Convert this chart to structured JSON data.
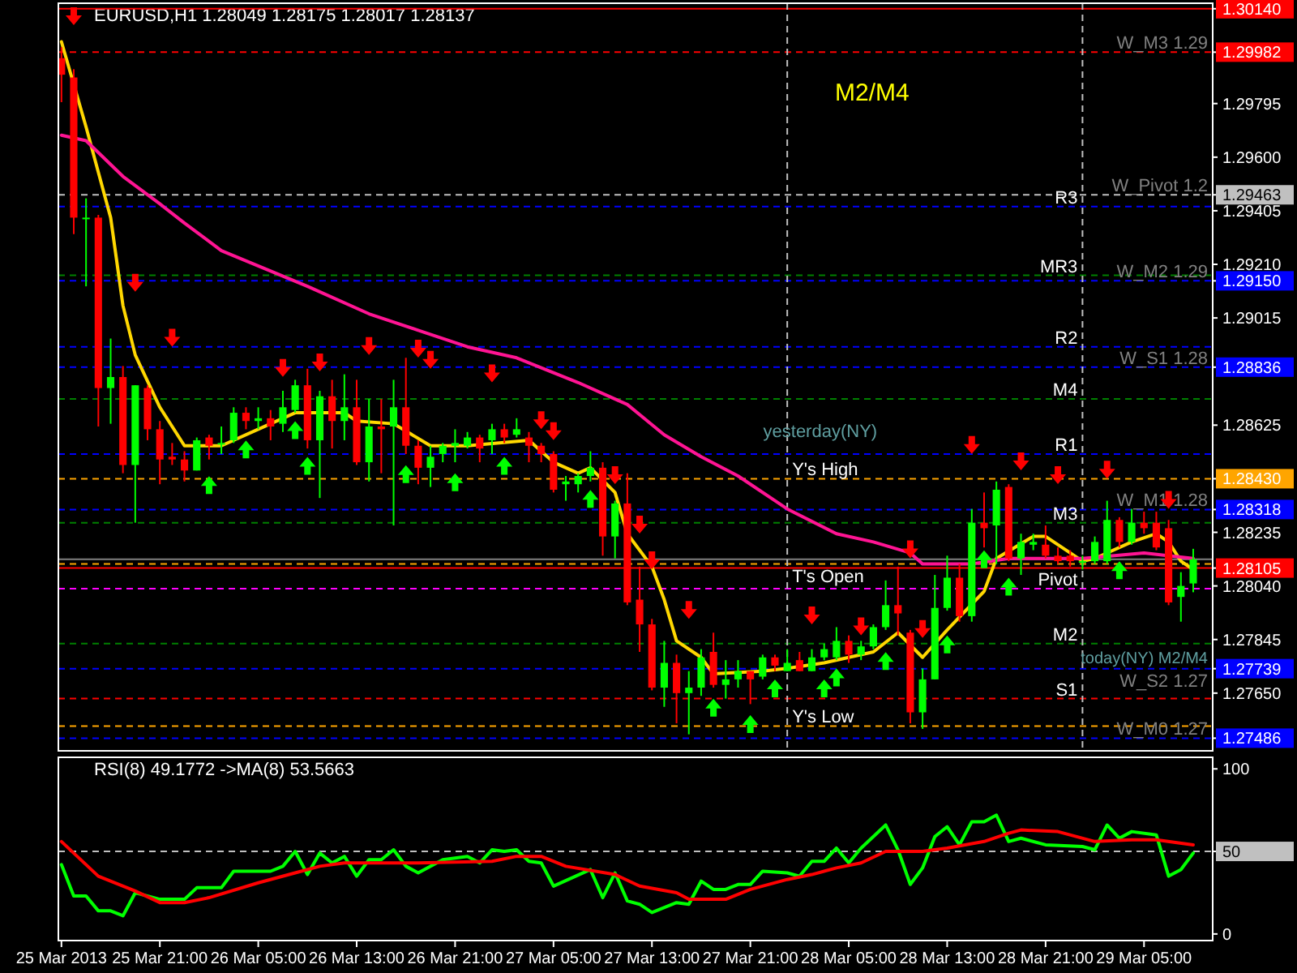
{
  "chart_data": [
    {
      "type": "candlestick",
      "title": "EURUSD,H1 1.28049 1.28175 1.28017 1.28137",
      "x": [
        "2013-03-25T13:00",
        "2013-03-25T14:00",
        "2013-03-25T15:00",
        "2013-03-25T16:00",
        "2013-03-25T17:00",
        "2013-03-25T18:00",
        "2013-03-25T19:00",
        "2013-03-25T20:00",
        "2013-03-25T21:00",
        "2013-03-25T22:00",
        "2013-03-25T23:00",
        "2013-03-26T00:00",
        "2013-03-26T01:00",
        "2013-03-26T02:00",
        "2013-03-26T03:00",
        "2013-03-26T04:00",
        "2013-03-26T05:00",
        "2013-03-26T06:00",
        "2013-03-26T07:00",
        "2013-03-26T08:00",
        "2013-03-26T09:00",
        "2013-03-26T10:00",
        "2013-03-26T11:00",
        "2013-03-26T12:00",
        "2013-03-26T13:00",
        "2013-03-26T14:00",
        "2013-03-26T15:00",
        "2013-03-26T16:00",
        "2013-03-26T17:00",
        "2013-03-26T18:00",
        "2013-03-26T19:00",
        "2013-03-26T20:00",
        "2013-03-26T21:00",
        "2013-03-26T22:00",
        "2013-03-26T23:00",
        "2013-03-27T00:00",
        "2013-03-27T01:00",
        "2013-03-27T02:00",
        "2013-03-27T03:00",
        "2013-03-27T04:00",
        "2013-03-27T05:00",
        "2013-03-27T06:00",
        "2013-03-27T07:00",
        "2013-03-27T08:00",
        "2013-03-27T09:00",
        "2013-03-27T10:00",
        "2013-03-27T11:00",
        "2013-03-27T12:00",
        "2013-03-27T13:00",
        "2013-03-27T14:00",
        "2013-03-27T15:00",
        "2013-03-27T16:00",
        "2013-03-27T17:00",
        "2013-03-27T18:00",
        "2013-03-27T19:00",
        "2013-03-27T20:00",
        "2013-03-27T21:00",
        "2013-03-27T22:00",
        "2013-03-27T23:00",
        "2013-03-28T00:00",
        "2013-03-28T01:00",
        "2013-03-28T02:00",
        "2013-03-28T03:00",
        "2013-03-28T04:00",
        "2013-03-28T05:00",
        "2013-03-28T06:00",
        "2013-03-28T07:00",
        "2013-03-28T08:00",
        "2013-03-28T09:00",
        "2013-03-28T10:00",
        "2013-03-28T11:00",
        "2013-03-28T12:00",
        "2013-03-28T13:00",
        "2013-03-28T14:00",
        "2013-03-28T15:00",
        "2013-03-28T16:00",
        "2013-03-28T17:00",
        "2013-03-28T18:00",
        "2013-03-28T19:00",
        "2013-03-28T20:00",
        "2013-03-28T21:00",
        "2013-03-28T22:00",
        "2013-03-28T23:00",
        "2013-03-29T00:00",
        "2013-03-29T01:00",
        "2013-03-29T02:00",
        "2013-03-29T03:00",
        "2013-03-29T04:00",
        "2013-03-29T05:00",
        "2013-03-29T06:00",
        "2013-03-29T07:00",
        "2013-03-29T08:00",
        "2013-03-29T09:00"
      ],
      "ohlc": [
        [
          1.2996,
          1.3,
          1.298,
          1.299
        ],
        [
          1.2989,
          1.2992,
          1.2932,
          1.2938
        ],
        [
          1.2938,
          1.2945,
          1.2913,
          1.2938
        ],
        [
          1.2938,
          1.2939,
          1.2862,
          1.2876
        ],
        [
          1.2876,
          1.2894,
          1.2863,
          1.288
        ],
        [
          1.288,
          1.2884,
          1.2845,
          1.2848
        ],
        [
          1.2848,
          1.2877,
          1.2827,
          1.2877
        ],
        [
          1.2876,
          1.2877,
          1.2857,
          1.2861
        ],
        [
          1.2861,
          1.2864,
          1.2841,
          1.285
        ],
        [
          1.2851,
          1.2856,
          1.2848,
          1.285
        ],
        [
          1.285,
          1.2853,
          1.2842,
          1.2846
        ],
        [
          1.2846,
          1.2858,
          1.2846,
          1.2857
        ],
        [
          1.2858,
          1.2859,
          1.285,
          1.2855
        ],
        [
          1.2856,
          1.2862,
          1.2852,
          1.2856
        ],
        [
          1.2857,
          1.2869,
          1.2856,
          1.2867
        ],
        [
          1.2867,
          1.2869,
          1.2861,
          1.2864
        ],
        [
          1.2864,
          1.2869,
          1.2861,
          1.2865
        ],
        [
          1.2865,
          1.2868,
          1.2857,
          1.2862
        ],
        [
          1.2863,
          1.2875,
          1.286,
          1.2869
        ],
        [
          1.2868,
          1.2879,
          1.2867,
          1.2877
        ],
        [
          1.2877,
          1.2883,
          1.2854,
          1.2857
        ],
        [
          1.2857,
          1.2875,
          1.2836,
          1.2873
        ],
        [
          1.2873,
          1.2879,
          1.2854,
          1.2864
        ],
        [
          1.2864,
          1.2881,
          1.2857,
          1.2869
        ],
        [
          1.2869,
          1.2879,
          1.2848,
          1.2849
        ],
        [
          1.2849,
          1.2872,
          1.2842,
          1.2862
        ],
        [
          1.2862,
          1.2872,
          1.2845,
          1.2861
        ],
        [
          1.2862,
          1.2879,
          1.2826,
          1.2869
        ],
        [
          1.2869,
          1.2887,
          1.2852,
          1.2855
        ],
        [
          1.2855,
          1.2857,
          1.2841,
          1.2847
        ],
        [
          1.2847,
          1.2855,
          1.284,
          1.2851
        ],
        [
          1.2852,
          1.2856,
          1.2849,
          1.2855
        ],
        [
          1.2855,
          1.2861,
          1.2849,
          1.2856
        ],
        [
          1.2855,
          1.286,
          1.2854,
          1.2858
        ],
        [
          1.2858,
          1.2859,
          1.2849,
          1.2854
        ],
        [
          1.2857,
          1.2863,
          1.2852,
          1.2861
        ],
        [
          1.2861,
          1.2863,
          1.2856,
          1.2858
        ],
        [
          1.2859,
          1.2865,
          1.2858,
          1.2861
        ],
        [
          1.2858,
          1.286,
          1.2849,
          1.2855
        ],
        [
          1.2855,
          1.2856,
          1.2849,
          1.2852
        ],
        [
          1.2852,
          1.2853,
          1.2838,
          1.2839
        ],
        [
          1.2841,
          1.2844,
          1.2835,
          1.2842
        ],
        [
          1.2841,
          1.2845,
          1.2838,
          1.2844
        ],
        [
          1.2844,
          1.2853,
          1.2842,
          1.2847
        ],
        [
          1.2847,
          1.2849,
          1.2815,
          1.2822
        ],
        [
          1.2822,
          1.2835,
          1.2814,
          1.2834
        ],
        [
          1.2834,
          1.2845,
          1.2797,
          1.2798
        ],
        [
          1.2799,
          1.2811,
          1.278,
          1.279
        ],
        [
          1.279,
          1.2792,
          1.2766,
          1.2767
        ],
        [
          1.2767,
          1.2784,
          1.276,
          1.2776
        ],
        [
          1.2776,
          1.2779,
          1.2754,
          1.2765
        ],
        [
          1.2765,
          1.2773,
          1.275,
          1.2767
        ],
        [
          1.2767,
          1.2781,
          1.2764,
          1.2778
        ],
        [
          1.278,
          1.2787,
          1.2767,
          1.2768
        ],
        [
          1.2768,
          1.2777,
          1.2763,
          1.277
        ],
        [
          1.277,
          1.2777,
          1.2767,
          1.2773
        ],
        [
          1.2773,
          1.2773,
          1.2761,
          1.277
        ],
        [
          1.2771,
          1.2779,
          1.277,
          1.2778
        ],
        [
          1.2778,
          1.2779,
          1.2773,
          1.2775
        ],
        [
          1.2773,
          1.2781,
          1.2773,
          1.2776
        ],
        [
          1.2777,
          1.278,
          1.2773,
          1.2773
        ],
        [
          1.2773,
          1.2781,
          1.2773,
          1.2778
        ],
        [
          1.2778,
          1.2783,
          1.2777,
          1.2781
        ],
        [
          1.2778,
          1.2789,
          1.2777,
          1.2784
        ],
        [
          1.2784,
          1.2786,
          1.2776,
          1.2779
        ],
        [
          1.2779,
          1.2784,
          1.2777,
          1.2782
        ],
        [
          1.2782,
          1.279,
          1.2781,
          1.2789
        ],
        [
          1.2789,
          1.2806,
          1.2788,
          1.2797
        ],
        [
          1.2797,
          1.2811,
          1.2786,
          1.2794
        ],
        [
          1.2787,
          1.2788,
          1.2754,
          1.2758
        ],
        [
          1.2758,
          1.2774,
          1.2752,
          1.277
        ],
        [
          1.277,
          1.2808,
          1.277,
          1.2796
        ],
        [
          1.2796,
          1.2815,
          1.2795,
          1.2807
        ],
        [
          1.2807,
          1.2812,
          1.2791,
          1.2793
        ],
        [
          1.2793,
          1.2832,
          1.2791,
          1.2827
        ],
        [
          1.2827,
          1.2838,
          1.2818,
          1.2825
        ],
        [
          1.2826,
          1.2842,
          1.2812,
          1.2839
        ],
        [
          1.284,
          1.2841,
          1.2813,
          1.2814
        ],
        [
          1.2814,
          1.2823,
          1.2808,
          1.282
        ],
        [
          1.2819,
          1.2823,
          1.2817,
          1.282
        ],
        [
          1.2819,
          1.2826,
          1.2814,
          1.2815
        ],
        [
          1.2815,
          1.2818,
          1.2812,
          1.2813
        ],
        [
          1.2815,
          1.2817,
          1.2811,
          1.2813
        ],
        [
          1.2813,
          1.2815,
          1.281,
          1.2813
        ],
        [
          1.2813,
          1.2822,
          1.2812,
          1.282
        ],
        [
          1.2813,
          1.2835,
          1.2812,
          1.2828
        ],
        [
          1.2828,
          1.2829,
          1.2818,
          1.282
        ],
        [
          1.282,
          1.2832,
          1.2819,
          1.2827
        ],
        [
          1.2827,
          1.2831,
          1.2823,
          1.2825
        ],
        [
          1.2827,
          1.2831,
          1.2817,
          1.2818
        ],
        [
          1.2825,
          1.2828,
          1.2797,
          1.2798
        ],
        [
          1.28,
          1.2809,
          1.2791,
          1.2804
        ],
        [
          1.28049,
          1.28175,
          1.28017,
          1.28137
        ]
      ],
      "series": [
        {
          "type": "line",
          "color": "#ffd700",
          "x": [
            "2013-03-25T13:00",
            "2013-03-25T15:00",
            "2013-03-25T17:00",
            "2013-03-25T18:00",
            "2013-03-25T19:00",
            "2013-03-25T21:00",
            "2013-03-25T23:00",
            "2013-03-26T02:00",
            "2013-03-26T05:00",
            "2013-03-26T08:00",
            "2013-03-26T12:00",
            "2013-03-26T13:00",
            "2013-03-26T16:00",
            "2013-03-26T19:00",
            "2013-03-26T22:00",
            "2013-03-27T03:00",
            "2013-03-27T05:00",
            "2013-03-27T07:00",
            "2013-03-27T08:00",
            "2013-03-27T10:00",
            "2013-03-27T11:00",
            "2013-03-27T13:00",
            "2013-03-27T14:00",
            "2013-03-27T15:00",
            "2013-03-27T17:00",
            "2013-03-27T18:00",
            "2013-03-27T22:00",
            "2013-03-28T00:00",
            "2013-03-28T03:00",
            "2013-03-28T05:00",
            "2013-03-28T07:00",
            "2013-03-28T09:00",
            "2013-03-28T11:00",
            "2013-03-28T13:00",
            "2013-03-28T16:00",
            "2013-03-28T17:00",
            "2013-03-28T20:00",
            "2013-03-28T21:00",
            "2013-03-28T23:00",
            "2013-03-29T00:00",
            "2013-03-29T01:00",
            "2013-03-29T04:00",
            "2013-03-29T06:00",
            "2013-03-29T07:00",
            "2013-03-29T08:00",
            "2013-03-29T09:00"
          ],
          "values": [
            1.3002,
            1.2971,
            1.2938,
            1.2906,
            1.2888,
            1.2869,
            1.2855,
            1.2855,
            1.2861,
            1.2867,
            1.2867,
            1.2864,
            1.2863,
            1.2855,
            1.2855,
            1.2857,
            1.2849,
            1.2845,
            1.2847,
            1.2838,
            1.2823,
            1.2811,
            1.2799,
            1.2784,
            1.2778,
            1.2772,
            1.2773,
            1.2774,
            1.2776,
            1.2778,
            1.278,
            1.2787,
            1.2778,
            1.2788,
            1.2802,
            1.2814,
            1.2822,
            1.2822,
            1.2816,
            1.2813,
            1.2814,
            1.282,
            1.2823,
            1.282,
            1.2813,
            1.281
          ]
        },
        {
          "type": "line",
          "color": "#ff1493",
          "x": [
            "2013-03-25T13:00",
            "2013-03-25T15:00",
            "2013-03-25T18:00",
            "2013-03-25T21:00",
            "2013-03-25T23:00",
            "2013-03-26T02:00",
            "2013-03-26T09:00",
            "2013-03-26T14:00",
            "2013-03-26T18:00",
            "2013-03-26T22:00",
            "2013-03-27T02:00",
            "2013-03-27T07:00",
            "2013-03-27T11:00",
            "2013-03-27T14:00",
            "2013-03-27T17:00",
            "2013-03-27T20:00",
            "2013-03-28T00:00",
            "2013-03-28T04:00",
            "2013-03-28T07:00",
            "2013-03-28T10:00",
            "2013-03-28T11:00",
            "2013-03-28T15:00",
            "2013-03-28T18:00",
            "2013-03-29T00:00",
            "2013-03-29T05:00",
            "2013-03-29T09:00"
          ],
          "values": [
            1.2968,
            1.2966,
            1.2953,
            1.2943,
            1.2936,
            1.2926,
            1.2913,
            1.2903,
            1.2897,
            1.2891,
            1.2887,
            1.2878,
            1.287,
            1.2859,
            1.2851,
            1.2844,
            1.2832,
            1.2823,
            1.282,
            1.2816,
            1.2812,
            1.2812,
            1.2814,
            1.2814,
            1.2816,
            1.2814
          ]
        },
        {
          "type": "scatter",
          "color": "#ff0000",
          "x": [
            "2013-03-25T14:00",
            "2013-03-25T19:00",
            "2013-03-25T22:00",
            "2013-03-26T07:00",
            "2013-03-26T10:00",
            "2013-03-26T14:00",
            "2013-03-26T18:00",
            "2013-03-26T19:00",
            "2013-03-27T00:00",
            "2013-03-27T04:00",
            "2013-03-27T05:00",
            "2013-03-27T10:00",
            "2013-03-27T12:00",
            "2013-03-27T13:00",
            "2013-03-27T16:00",
            "2013-03-28T02:00",
            "2013-03-28T06:00",
            "2013-03-28T10:00",
            "2013-03-28T11:00",
            "2013-03-28T15:00",
            "2013-03-28T19:00",
            "2013-03-28T22:00",
            "2013-03-29T02:00",
            "2013-03-29T07:00"
          ],
          "values": [
            1.3011,
            1.2914,
            1.2894,
            1.2883,
            1.2885,
            1.2891,
            1.289,
            1.2886,
            1.2881,
            1.2864,
            1.286,
            1.2844,
            1.2826,
            1.2813,
            1.2795,
            1.2793,
            1.2789,
            1.2817,
            1.2788,
            1.2855,
            1.2849,
            1.2844,
            1.2846,
            1.2835
          ]
        },
        {
          "type": "scatter",
          "color": "#00ff00",
          "x": [
            "2013-03-26T01:00",
            "2013-03-26T04:00",
            "2013-03-26T08:00",
            "2013-03-26T09:00",
            "2013-03-26T17:00",
            "2013-03-26T21:00",
            "2013-03-27T01:00",
            "2013-03-27T08:00",
            "2013-03-27T18:00",
            "2013-03-27T21:00",
            "2013-03-27T23:00",
            "2013-03-28T03:00",
            "2013-03-28T04:00",
            "2013-03-28T08:00",
            "2013-03-28T13:00",
            "2013-03-28T16:00",
            "2013-03-28T18:00",
            "2013-03-29T03:00"
          ],
          "values": [
            1.2841,
            1.2854,
            1.2861,
            1.2848,
            1.2845,
            1.2842,
            1.2848,
            1.2836,
            1.276,
            1.2754,
            1.2767,
            1.2767,
            1.2771,
            1.2777,
            1.2783,
            1.2814,
            1.2804,
            1.281
          ]
        }
      ],
      "xlim": [
        "2013-03-25T12:45",
        "2013-03-29T10:35"
      ],
      "ylim": [
        1.2744,
        1.3016
      ],
      "yticks": [
        {
          "value": 1.3014,
          "label": "1.30140"
        },
        1.29982,
        1.29795,
        {
          "value": 1.296,
          "label": "1.29600"
        },
        1.29463,
        1.29405,
        {
          "value": 1.2921,
          "label": "1.29210"
        },
        {
          "value": 1.2915,
          "label": "1.29150"
        },
        1.29015,
        1.28836,
        1.28625,
        {
          "value": 1.2843,
          "label": "1.28430"
        },
        1.28318,
        1.28235,
        1.28105,
        {
          "value": 1.2804,
          "label": "1.28040"
        },
        1.27845,
        1.27739,
        {
          "value": 1.2765,
          "label": "1.27650"
        },
        1.27486
      ],
      "tick_labels": "y",
      "ref_lines": [
        {
          "axis": "y",
          "value": 1.3014,
          "color": "#ff0000",
          "line_style": "solid"
        },
        {
          "axis": "y",
          "value": 1.29982,
          "label": "W_M3 1.29",
          "color": "#ff0000",
          "line_style": "dashed"
        },
        {
          "axis": "y",
          "value": 1.29463,
          "label": "W_Pivot 1.2",
          "color": "#c0c0c0",
          "line_style": "dashed"
        },
        {
          "axis": "y",
          "value": 1.2942,
          "label": "R3",
          "color": "#0000ff",
          "line_style": "dashed"
        },
        {
          "axis": "y",
          "value": 1.2917,
          "label": "MR3",
          "color": "#008000",
          "line_style": "dashed"
        },
        {
          "axis": "y",
          "value": 1.2915,
          "label": "W_M2 1.29",
          "color": "#0000ff",
          "line_style": "dashed"
        },
        {
          "axis": "y",
          "value": 1.2891,
          "label": "R2",
          "color": "#0000ff",
          "line_style": "dashed"
        },
        {
          "axis": "y",
          "value": 1.28836,
          "label": "W_S1 1.28",
          "color": "#0000ff",
          "line_style": "dashed"
        },
        {
          "axis": "y",
          "value": 1.2872,
          "label": "M4",
          "color": "#008000",
          "line_style": "dashed"
        },
        {
          "axis": "y",
          "value": 1.2852,
          "label": "R1",
          "color": "#0000ff",
          "line_style": "dashed"
        },
        {
          "axis": "y",
          "value": 1.2843,
          "label": "Y's High",
          "color": "#ffa500",
          "line_style": "dashed"
        },
        {
          "axis": "y",
          "value": 1.28318,
          "label": "W_M1 1.28",
          "color": "#0000ff",
          "line_style": "dashed"
        },
        {
          "axis": "y",
          "value": 1.2827,
          "label": "M3",
          "color": "#008000",
          "line_style": "dashed"
        },
        {
          "axis": "y",
          "value": 1.28137,
          "color": "#808080",
          "line_style": "solid"
        },
        {
          "axis": "y",
          "value": 1.2812,
          "label": "T's Open",
          "color": "#ffa500",
          "line_style": "dashed"
        },
        {
          "axis": "y",
          "value": 1.28105,
          "color": "#ff0000",
          "line_style": "solid"
        },
        {
          "axis": "y",
          "value": 1.2803,
          "label": "Pivot",
          "color": "#ff00ff",
          "line_style": "dashed"
        },
        {
          "axis": "y",
          "value": 1.2783,
          "label": "M2",
          "color": "#008000",
          "line_style": "dashed"
        },
        {
          "axis": "y",
          "value": 1.27739,
          "label": "W_S2 1.27",
          "color": "#0000ff",
          "line_style": "dashed"
        },
        {
          "axis": "y",
          "value": 1.2763,
          "label": "S1",
          "color": "#ff0000",
          "line_style": "dashed"
        },
        {
          "axis": "y",
          "value": 1.2753,
          "label": "Y's Low",
          "color": "#ffa500",
          "line_style": "dashed"
        },
        {
          "axis": "y",
          "value": 1.27486,
          "label": "W_M0 1.27",
          "color": "#0000ff",
          "line_style": "dashed"
        },
        {
          "axis": "x",
          "value": "2013-03-28T00:00",
          "color": "#c0c0c0",
          "line_style": "dashed"
        },
        {
          "axis": "x",
          "value": "2013-03-29T00:00",
          "color": "#c0c0c0",
          "line_style": "dashed"
        }
      ],
      "annotations": [
        "M2/M4",
        "yesterday(NY)",
        "today(NY) M2/M4"
      ]
    },
    {
      "type": "line",
      "title": "RSI(8) 49.1772 ->MA(8) 53.5663",
      "series": [
        {
          "color": "#00ff00",
          "x": [
            "2013-03-25T13:00",
            "2013-03-25T14:00",
            "2013-03-25T15:00",
            "2013-03-25T16:00",
            "2013-03-25T17:00",
            "2013-03-25T18:00",
            "2013-03-25T19:00",
            "2013-03-25T21:00",
            "2013-03-25T23:00",
            "2013-03-26T00:00",
            "2013-03-26T02:00",
            "2013-03-26T03:00",
            "2013-03-26T06:00",
            "2013-03-26T07:00",
            "2013-03-26T08:00",
            "2013-03-26T09:00",
            "2013-03-26T10:00",
            "2013-03-26T11:00",
            "2013-03-26T12:00",
            "2013-03-26T13:00",
            "2013-03-26T14:00",
            "2013-03-26T15:00",
            "2013-03-26T16:00",
            "2013-03-26T17:00",
            "2013-03-26T18:00",
            "2013-03-26T20:00",
            "2013-03-26T22:00",
            "2013-03-26T23:00",
            "2013-03-27T00:00",
            "2013-03-27T01:00",
            "2013-03-27T02:00",
            "2013-03-27T03:00",
            "2013-03-27T04:00",
            "2013-03-27T05:00",
            "2013-03-27T08:00",
            "2013-03-27T09:00",
            "2013-03-27T10:00",
            "2013-03-27T11:00",
            "2013-03-27T12:00",
            "2013-03-27T13:00",
            "2013-03-27T15:00",
            "2013-03-27T16:00",
            "2013-03-27T17:00",
            "2013-03-27T18:00",
            "2013-03-27T19:00",
            "2013-03-27T20:00",
            "2013-03-27T21:00",
            "2013-03-27T22:00",
            "2013-03-28T00:00",
            "2013-03-28T01:00",
            "2013-03-28T02:00",
            "2013-03-28T03:00",
            "2013-03-28T04:00",
            "2013-03-28T05:00",
            "2013-03-28T06:00",
            "2013-03-28T08:00",
            "2013-03-28T09:00",
            "2013-03-28T10:00",
            "2013-03-28T11:00",
            "2013-03-28T12:00",
            "2013-03-28T13:00",
            "2013-03-28T14:00",
            "2013-03-28T15:00",
            "2013-03-28T16:00",
            "2013-03-28T17:00",
            "2013-03-28T18:00",
            "2013-03-28T19:00",
            "2013-03-28T21:00",
            "2013-03-29T00:00",
            "2013-03-29T01:00",
            "2013-03-29T02:00",
            "2013-03-29T03:00",
            "2013-03-29T04:00",
            "2013-03-29T06:00",
            "2013-03-29T07:00",
            "2013-03-29T08:00",
            "2013-03-29T09:00"
          ],
          "values": [
            42,
            23,
            23,
            14,
            14,
            11,
            25,
            21,
            21,
            28,
            28,
            38,
            38,
            41,
            50,
            36,
            49,
            43,
            47,
            35,
            45,
            45,
            51,
            41,
            37,
            45,
            47,
            43,
            51,
            50,
            51,
            44,
            43,
            29,
            39,
            22,
            37,
            20,
            18,
            13,
            19,
            18,
            32,
            27,
            27,
            30,
            30,
            38,
            37,
            35,
            44,
            44,
            52,
            43,
            52,
            66,
            51,
            30,
            40,
            59,
            65,
            54,
            68,
            68,
            72,
            56,
            58,
            54,
            53,
            51,
            66,
            58,
            62,
            60,
            35,
            39,
            49
          ]
        },
        {
          "color": "#ff0000",
          "x": [
            "2013-03-25T13:00",
            "2013-03-25T16:00",
            "2013-03-25T19:00",
            "2013-03-25T21:00",
            "2013-03-25T23:00",
            "2013-03-26T01:00",
            "2013-03-26T05:00",
            "2013-03-26T08:00",
            "2013-03-26T10:00",
            "2013-03-26T12:00",
            "2013-03-26T18:00",
            "2013-03-27T00:00",
            "2013-03-27T02:00",
            "2013-03-27T04:00",
            "2013-03-27T06:00",
            "2013-03-27T10:00",
            "2013-03-27T12:00",
            "2013-03-27T15:00",
            "2013-03-27T16:00",
            "2013-03-27T19:00",
            "2013-03-27T21:00",
            "2013-03-28T00:00",
            "2013-03-28T02:00",
            "2013-03-28T04:00",
            "2013-03-28T06:00",
            "2013-03-28T08:00",
            "2013-03-28T11:00",
            "2013-03-28T13:00",
            "2013-03-28T16:00",
            "2013-03-28T18:00",
            "2013-03-28T19:00",
            "2013-03-28T22:00",
            "2013-03-29T01:00",
            "2013-03-29T04:00",
            "2013-03-29T06:00",
            "2013-03-29T09:00"
          ],
          "values": [
            56,
            35,
            26,
            19,
            19,
            22,
            31,
            37,
            41,
            43,
            43,
            44,
            47,
            47,
            41,
            36,
            29,
            25,
            21,
            21,
            27,
            33,
            36,
            40,
            43,
            50,
            50,
            52,
            56,
            61,
            63,
            62,
            56,
            57,
            57,
            54
          ]
        }
      ],
      "xlim": [
        "2013-03-25T12:45",
        "2013-03-29T10:35"
      ],
      "xticks": [
        {
          "value": "2013-03-25T13:00",
          "label": "25 Mar 2013"
        },
        {
          "value": "2013-03-25T21:00",
          "label": "25 Mar 21:00"
        },
        {
          "value": "2013-03-26T05:00",
          "label": "26 Mar 05:00"
        },
        {
          "value": "2013-03-26T13:00",
          "label": "26 Mar 13:00"
        },
        {
          "value": "2013-03-26T21:00",
          "label": "26 Mar 21:00"
        },
        {
          "value": "2013-03-27T05:00",
          "label": "27 Mar 05:00"
        },
        {
          "value": "2013-03-27T13:00",
          "label": "27 Mar 13:00"
        },
        {
          "value": "2013-03-27T21:00",
          "label": "27 Mar 21:00"
        },
        {
          "value": "2013-03-28T05:00",
          "label": "28 Mar 05:00"
        },
        {
          "value": "2013-03-28T13:00",
          "label": "28 Mar 13:00"
        },
        {
          "value": "2013-03-28T21:00",
          "label": "28 Mar 21:00"
        },
        {
          "value": "2013-03-29T05:00",
          "label": "29 Mar 05:00"
        }
      ],
      "ylim": [
        -4,
        107
      ],
      "yticks": [
        0,
        50,
        100
      ],
      "ref_lines": [
        {
          "axis": "y",
          "value": 50,
          "color": "#c0c0c0",
          "line_style": "dashed"
        }
      ]
    }
  ]
}
